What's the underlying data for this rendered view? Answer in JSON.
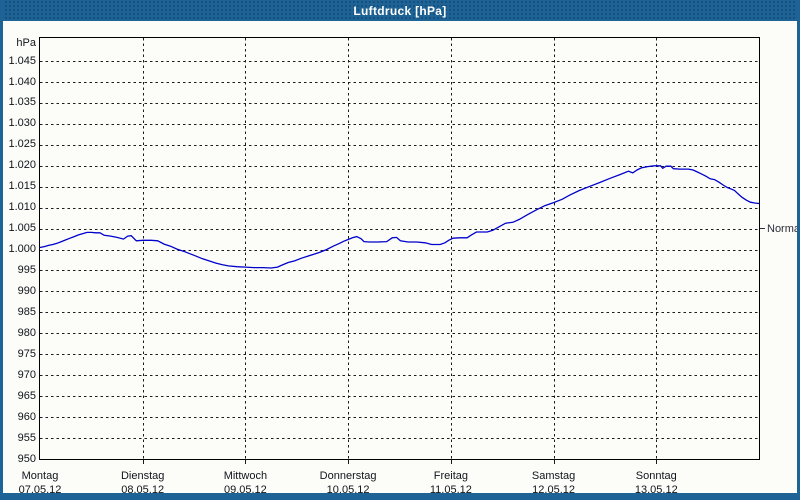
{
  "window": {
    "title": "Luftdruck [hPa]"
  },
  "colors": {
    "titlebar": "#1e6396",
    "frame": "#1e6396",
    "background": "#fcfdf8",
    "line": "#0000cc",
    "grid": "#1a1a1a",
    "text": "#10141c"
  },
  "y_axis": {
    "unit": "hPa",
    "tick_labels": [
      "1.045",
      "1.040",
      "1.035",
      "1.030",
      "1.025",
      "1.020",
      "1.015",
      "1.010",
      "1.005",
      "1.000",
      "995",
      "990",
      "985",
      "980",
      "975",
      "970",
      "965",
      "960",
      "955",
      "950"
    ]
  },
  "x_axis": {
    "days": [
      {
        "name": "Montag",
        "date": "07.05.12"
      },
      {
        "name": "Dienstag",
        "date": "08.05.12"
      },
      {
        "name": "Mittwoch",
        "date": "09.05.12"
      },
      {
        "name": "Donnerstag",
        "date": "10.05.12"
      },
      {
        "name": "Freitag",
        "date": "11.05.12"
      },
      {
        "name": "Samstag",
        "date": "12.05.12"
      },
      {
        "name": "Sonntag",
        "date": "13.05.12"
      }
    ]
  },
  "normal_marker": {
    "label": "Normal",
    "value_hpa": 1005
  },
  "chart_data": {
    "type": "line",
    "title": "Luftdruck [hPa]",
    "ylabel": "hPa",
    "ylim": [
      950,
      1050.5
    ],
    "y_tick_min": 950,
    "y_tick_max": 1045,
    "y_tick_step": 5,
    "x_unit": "hours_since_monday_00:00",
    "xlim": [
      0,
      168
    ],
    "x_day_boundaries_hours": [
      0,
      24,
      48,
      72,
      96,
      120,
      144,
      168
    ],
    "grid": "dashed",
    "legend_position": "none",
    "annotations": [
      {
        "label": "Normal",
        "y_hpa": 1005,
        "position": "right_edge"
      }
    ],
    "series": [
      {
        "name": "Luftdruck",
        "color": "#0000cc",
        "points": [
          [
            0,
            1000.5
          ],
          [
            1,
            1000.7
          ],
          [
            2,
            1001.0
          ],
          [
            3,
            1001.2
          ],
          [
            4,
            1001.5
          ],
          [
            5,
            1001.9
          ],
          [
            6,
            1002.3
          ],
          [
            7,
            1002.7
          ],
          [
            8,
            1003.1
          ],
          [
            9,
            1003.5
          ],
          [
            10,
            1003.8
          ],
          [
            11,
            1004.1
          ],
          [
            12,
            1004.1
          ],
          [
            13,
            1004.0
          ],
          [
            14,
            1004.0
          ],
          [
            15,
            1003.4
          ],
          [
            16.5,
            1003.2
          ],
          [
            18,
            1002.9
          ],
          [
            19.5,
            1002.5
          ],
          [
            20.5,
            1003.2
          ],
          [
            21.3,
            1003.3
          ],
          [
            22.5,
            1002.1
          ],
          [
            24,
            1002.2
          ],
          [
            26,
            1002.2
          ],
          [
            27.5,
            1002.1
          ],
          [
            29,
            1001.3
          ],
          [
            30.5,
            1000.8
          ],
          [
            32,
            1000.1
          ],
          [
            33.5,
            999.6
          ],
          [
            35,
            999.0
          ],
          [
            36.5,
            998.4
          ],
          [
            38,
            997.8
          ],
          [
            39.5,
            997.3
          ],
          [
            41,
            996.8
          ],
          [
            42.5,
            996.4
          ],
          [
            44,
            996.1
          ],
          [
            46,
            995.9
          ],
          [
            48,
            995.8
          ],
          [
            50,
            995.7
          ],
          [
            52,
            995.7
          ],
          [
            54,
            995.6
          ],
          [
            55.5,
            995.8
          ],
          [
            56.6,
            996.3
          ],
          [
            58,
            996.9
          ],
          [
            59.5,
            997.3
          ],
          [
            61,
            997.9
          ],
          [
            62.5,
            998.4
          ],
          [
            64,
            998.9
          ],
          [
            65.5,
            999.4
          ],
          [
            67,
            1000.0
          ],
          [
            68.5,
            1000.8
          ],
          [
            70,
            1001.5
          ],
          [
            71,
            1002.0
          ],
          [
            72,
            1002.4
          ],
          [
            73,
            1002.8
          ],
          [
            74,
            1003.1
          ],
          [
            75,
            1002.6
          ],
          [
            75.7,
            1001.9
          ],
          [
            77,
            1001.8
          ],
          [
            79,
            1001.8
          ],
          [
            81,
            1001.9
          ],
          [
            82.3,
            1002.8
          ],
          [
            83.3,
            1002.9
          ],
          [
            84.2,
            1002.1
          ],
          [
            86,
            1001.8
          ],
          [
            88,
            1001.8
          ],
          [
            90,
            1001.6
          ],
          [
            91.5,
            1001.2
          ],
          [
            93.5,
            1001.2
          ],
          [
            94.6,
            1001.6
          ],
          [
            95.5,
            1002.2
          ],
          [
            96.5,
            1002.7
          ],
          [
            98,
            1002.8
          ],
          [
            99.8,
            1002.8
          ],
          [
            100.8,
            1003.5
          ],
          [
            102,
            1004.2
          ],
          [
            104.5,
            1004.2
          ],
          [
            105.8,
            1004.6
          ],
          [
            107.2,
            1005.4
          ],
          [
            108.8,
            1006.3
          ],
          [
            110.5,
            1006.5
          ],
          [
            112,
            1007.2
          ],
          [
            114,
            1008.4
          ],
          [
            116,
            1009.5
          ],
          [
            118,
            1010.5
          ],
          [
            120,
            1011.2
          ],
          [
            122,
            1012.0
          ],
          [
            123.8,
            1013.0
          ],
          [
            126,
            1014.1
          ],
          [
            128.5,
            1015.1
          ],
          [
            130.8,
            1016.0
          ],
          [
            133.2,
            1017.0
          ],
          [
            135.5,
            1017.9
          ],
          [
            137.5,
            1018.7
          ],
          [
            138.5,
            1018.3
          ],
          [
            139.5,
            1019.0
          ],
          [
            140.5,
            1019.5
          ],
          [
            142,
            1019.8
          ],
          [
            143.5,
            1020.0
          ],
          [
            145,
            1020.0
          ],
          [
            145.5,
            1019.4
          ],
          [
            146.3,
            1019.9
          ],
          [
            147.4,
            1019.9
          ],
          [
            148,
            1019.3
          ],
          [
            149.5,
            1019.2
          ],
          [
            151.5,
            1019.2
          ],
          [
            152.6,
            1019.0
          ],
          [
            153.6,
            1018.5
          ],
          [
            154.6,
            1018.0
          ],
          [
            155.6,
            1017.5
          ],
          [
            156.6,
            1016.9
          ],
          [
            157.6,
            1016.7
          ],
          [
            158.6,
            1016.1
          ],
          [
            159.6,
            1015.4
          ],
          [
            160.6,
            1014.8
          ],
          [
            161.6,
            1014.4
          ],
          [
            162.3,
            1014.1
          ],
          [
            163.1,
            1013.3
          ],
          [
            164,
            1012.5
          ],
          [
            165,
            1011.8
          ],
          [
            166,
            1011.3
          ],
          [
            167,
            1011.1
          ],
          [
            168,
            1011.0
          ]
        ]
      }
    ]
  }
}
